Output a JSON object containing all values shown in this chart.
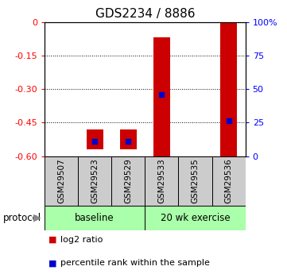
{
  "title": "GDS2234 / 8886",
  "samples": [
    "GSM29507",
    "GSM29523",
    "GSM29529",
    "GSM29533",
    "GSM29535",
    "GSM29536"
  ],
  "bar_bottom": [
    0,
    -0.57,
    -0.57,
    -0.6,
    0,
    -0.6
  ],
  "bar_top": [
    0,
    -0.48,
    -0.48,
    -0.07,
    0,
    0.0
  ],
  "percentile_y": [
    null,
    -0.535,
    -0.535,
    -0.325,
    null,
    -0.44
  ],
  "ylim_left": [
    -0.6,
    0
  ],
  "ylim_right": [
    0,
    100
  ],
  "yticks_left": [
    0,
    -0.15,
    -0.3,
    -0.45,
    -0.6
  ],
  "yticks_right": [
    0,
    25,
    50,
    75,
    100
  ],
  "ytick_labels_left": [
    "0",
    "-0.15",
    "-0.30",
    "-0.45",
    "-0.60"
  ],
  "ytick_labels_right": [
    "0",
    "25",
    "50",
    "75",
    "100%"
  ],
  "bar_color": "#cc0000",
  "percentile_color": "#0000cc",
  "group1_label": "baseline",
  "group2_label": "20 wk exercise",
  "group1_indices": [
    0,
    1,
    2
  ],
  "group2_indices": [
    3,
    4,
    5
  ],
  "group_bg_color": "#aaffaa",
  "sample_bg_color": "#cccccc",
  "legend_bar_label": "log2 ratio",
  "legend_pct_label": "percentile rank within the sample",
  "protocol_label": "protocol",
  "title_fontsize": 11,
  "tick_label_fontsize": 8,
  "bar_width": 0.5
}
